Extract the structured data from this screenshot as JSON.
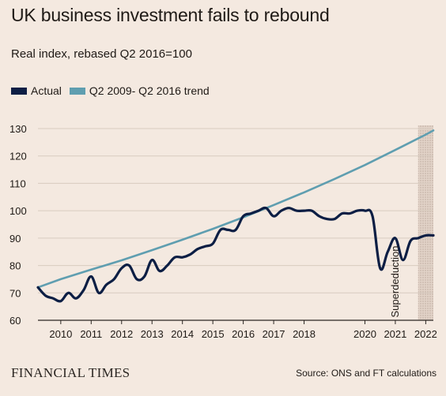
{
  "chart_data": {
    "type": "line",
    "title": "UK business investment fails to rebound",
    "subtitle": "Real index, rebased Q2 2016=100",
    "xlim": [
      2009.25,
      2022.25
    ],
    "ylim": [
      60,
      130
    ],
    "yticks": [
      60,
      70,
      80,
      90,
      100,
      110,
      120,
      130
    ],
    "xticks": [
      2010,
      2011,
      2012,
      2013,
      2014,
      2015,
      2016,
      2017,
      2018,
      2020,
      2021,
      2022
    ],
    "xtick_labels": [
      "2010",
      "2011",
      "2012",
      "2013",
      "2014",
      "2015",
      "2016",
      "2017",
      "2018",
      "2020",
      "2021",
      "2022"
    ],
    "grid": "horizontal",
    "legend_position": "top-left",
    "shaded_region": {
      "x_start": 2021.75,
      "x_end": 2022.25,
      "pattern": "hatched"
    },
    "annotation": {
      "text": "Superdeduction",
      "x": 2021.1,
      "y": 61
    },
    "series": [
      {
        "name": "Actual",
        "color": "#0c1e44",
        "x": [
          2009.25,
          2009.5,
          2009.75,
          2010.0,
          2010.25,
          2010.5,
          2010.75,
          2011.0,
          2011.25,
          2011.5,
          2011.75,
          2012.0,
          2012.25,
          2012.5,
          2012.75,
          2013.0,
          2013.25,
          2013.5,
          2013.75,
          2014.0,
          2014.25,
          2014.5,
          2014.75,
          2015.0,
          2015.25,
          2015.5,
          2015.75,
          2016.0,
          2016.25,
          2016.5,
          2016.75,
          2017.0,
          2017.25,
          2017.5,
          2017.75,
          2018.0,
          2018.25,
          2018.5,
          2018.75,
          2019.0,
          2019.25,
          2019.5,
          2019.75,
          2020.0,
          2020.25,
          2020.5,
          2020.75,
          2021.0,
          2021.25,
          2021.5,
          2021.75,
          2022.0,
          2022.25
        ],
        "y": [
          72,
          69,
          68,
          67,
          70,
          68,
          71,
          76,
          70,
          73,
          75,
          79,
          80,
          75,
          76,
          82,
          78,
          80,
          83,
          83,
          84,
          86,
          87,
          88,
          93,
          93,
          93,
          98,
          99,
          100,
          101,
          98,
          100,
          101,
          100,
          100,
          100,
          98,
          97,
          97,
          99,
          99,
          100,
          100,
          98,
          79,
          85,
          90,
          82,
          89,
          90,
          91,
          91
        ]
      },
      {
        "name": "Q2 2009- Q2 2016 trend",
        "color": "#5f9eb0",
        "x": [
          2009.25,
          2010.0,
          2011.0,
          2012.0,
          2013.0,
          2014.0,
          2015.0,
          2016.0,
          2017.0,
          2018.0,
          2019.0,
          2020.0,
          2021.0,
          2022.0,
          2022.25
        ],
        "y": [
          72,
          75,
          78.5,
          81.9,
          85.6,
          89.4,
          93.4,
          97.6,
          102.1,
          106.7,
          111.6,
          116.7,
          122.2,
          127.8,
          129.3
        ]
      }
    ],
    "colors": {
      "background": "#f4e9e0",
      "grid": "#d8cbbf",
      "axis": "#2b2622"
    }
  },
  "legend": {
    "actual_label": "Actual",
    "trend_label": "Q2 2009- Q2 2016 trend"
  },
  "footer": {
    "brand": "FINANCIAL TIMES",
    "source": "Source: ONS and FT calculations"
  }
}
